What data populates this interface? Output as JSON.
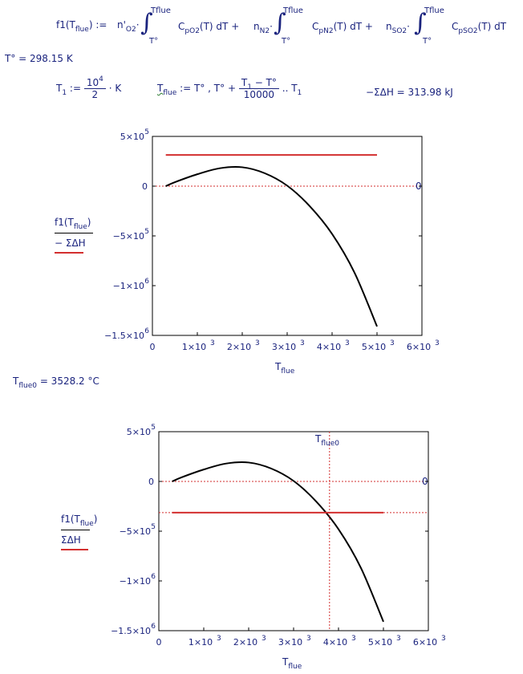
{
  "definition": {
    "lhs": "f1",
    "lhs_arg": "T",
    "lhs_arg_sub": "flue",
    "assign": ":=",
    "upper": "Tflue",
    "lower": "T°",
    "terms": [
      {
        "coef": "n'",
        "coef_sub": "O2",
        "func": "C",
        "func_sub": "pO2",
        "arg": "(T)  dT",
        "sep": "+"
      },
      {
        "coef": "n",
        "coef_sub": "N2",
        "func": "C",
        "func_sub": "pN2",
        "arg": "(T)  dT",
        "sep": "+"
      },
      {
        "coef": "n",
        "coef_sub": "SO2",
        "func": "C",
        "func_sub": "pSO2",
        "arg": "(T)  dT",
        "sep": ""
      }
    ]
  },
  "t0": {
    "label": "T°",
    "eq": "= 298.15 K"
  },
  "t1": {
    "lhs": "T",
    "lhs_sub": "1",
    "assign": ":=",
    "num": "10",
    "num_sup": "4",
    "den": "2",
    "unit": "· K"
  },
  "range": {
    "lhs": "T",
    "lhs_sub": "flue",
    "assign": ":=",
    "expr": "T° , T° +",
    "num": "T",
    "num_sub": "1",
    "num_tail": " − T°",
    "den": "10000",
    "tail": "..  T",
    "tail_sub": "1"
  },
  "sumdh": {
    "text": "−ΣΔH = 313.98 kJ"
  },
  "result": {
    "lhs": "T",
    "lhs_sub": "flue0",
    "eq": "= 3528.2 °C"
  },
  "plot1": {
    "ylabel_top": "f1(T",
    "ylabel_top_sub": "flue",
    "ylabel_top_tail": ")",
    "ylabel_bottom": "− ΣΔH",
    "xlabel": "T",
    "xlabel_sub": "flue",
    "yticks": [
      "5×10",
      "0",
      "−5×10",
      "−1×10",
      "−1.5×10"
    ],
    "ytick_sups": [
      "5",
      "",
      "5",
      "6",
      "6"
    ],
    "xticks": [
      "0",
      "1×10",
      "2×10",
      "3×10",
      "4×10",
      "5×10",
      "6×10"
    ],
    "xtick_sups": [
      "",
      "3",
      "3",
      "3",
      "3",
      "3",
      "3"
    ],
    "zero_label": "0"
  },
  "plot2": {
    "ylabel_top": "f1(T",
    "ylabel_top_sub": "flue",
    "ylabel_top_tail": ")",
    "ylabel_bottom": "ΣΔH",
    "xlabel": "T",
    "xlabel_sub": "flue",
    "marker_label": "T",
    "marker_label_sub": "flue0",
    "yticks": [
      "5×10",
      "0",
      "−5×10",
      "−1×10",
      "−1.5×10"
    ],
    "ytick_sups": [
      "5",
      "",
      "5",
      "6",
      "6"
    ],
    "xticks": [
      "0",
      "1×10",
      "2×10",
      "3×10",
      "4×10",
      "5×10",
      "6×10"
    ],
    "xtick_sups": [
      "",
      "3",
      "3",
      "3",
      "3",
      "3",
      "3"
    ],
    "zero_label": "0"
  },
  "chart_data": [
    {
      "type": "line",
      "xlim": [
        0,
        6000
      ],
      "ylim": [
        -1500000,
        500000
      ],
      "grid": false,
      "series": [
        {
          "color": "#000000",
          "x": [
            298,
            500,
            1000,
            1500,
            2000,
            2500,
            3000,
            3500,
            4000,
            4500,
            5000
          ],
          "values": [
            0,
            40000,
            120000,
            180000,
            190000,
            130000,
            5000,
            -200000,
            -480000,
            -870000,
            -1410000
          ]
        },
        {
          "color": "#d32f2f",
          "x": [
            298,
            5000
          ],
          "values": [
            313980,
            313980
          ]
        }
      ]
    },
    {
      "type": "line",
      "xlim": [
        0,
        6000
      ],
      "ylim": [
        -1500000,
        500000
      ],
      "grid": false,
      "series": [
        {
          "color": "#000000",
          "x": [
            298,
            500,
            1000,
            1500,
            2000,
            2500,
            3000,
            3500,
            4000,
            4500,
            5000
          ],
          "values": [
            0,
            40000,
            120000,
            180000,
            190000,
            130000,
            5000,
            -200000,
            -480000,
            -870000,
            -1410000
          ]
        },
        {
          "color": "#d32f2f",
          "x": [
            298,
            5000
          ],
          "values": [
            -313980,
            -313980
          ]
        }
      ],
      "marker_x": 3800
    }
  ]
}
